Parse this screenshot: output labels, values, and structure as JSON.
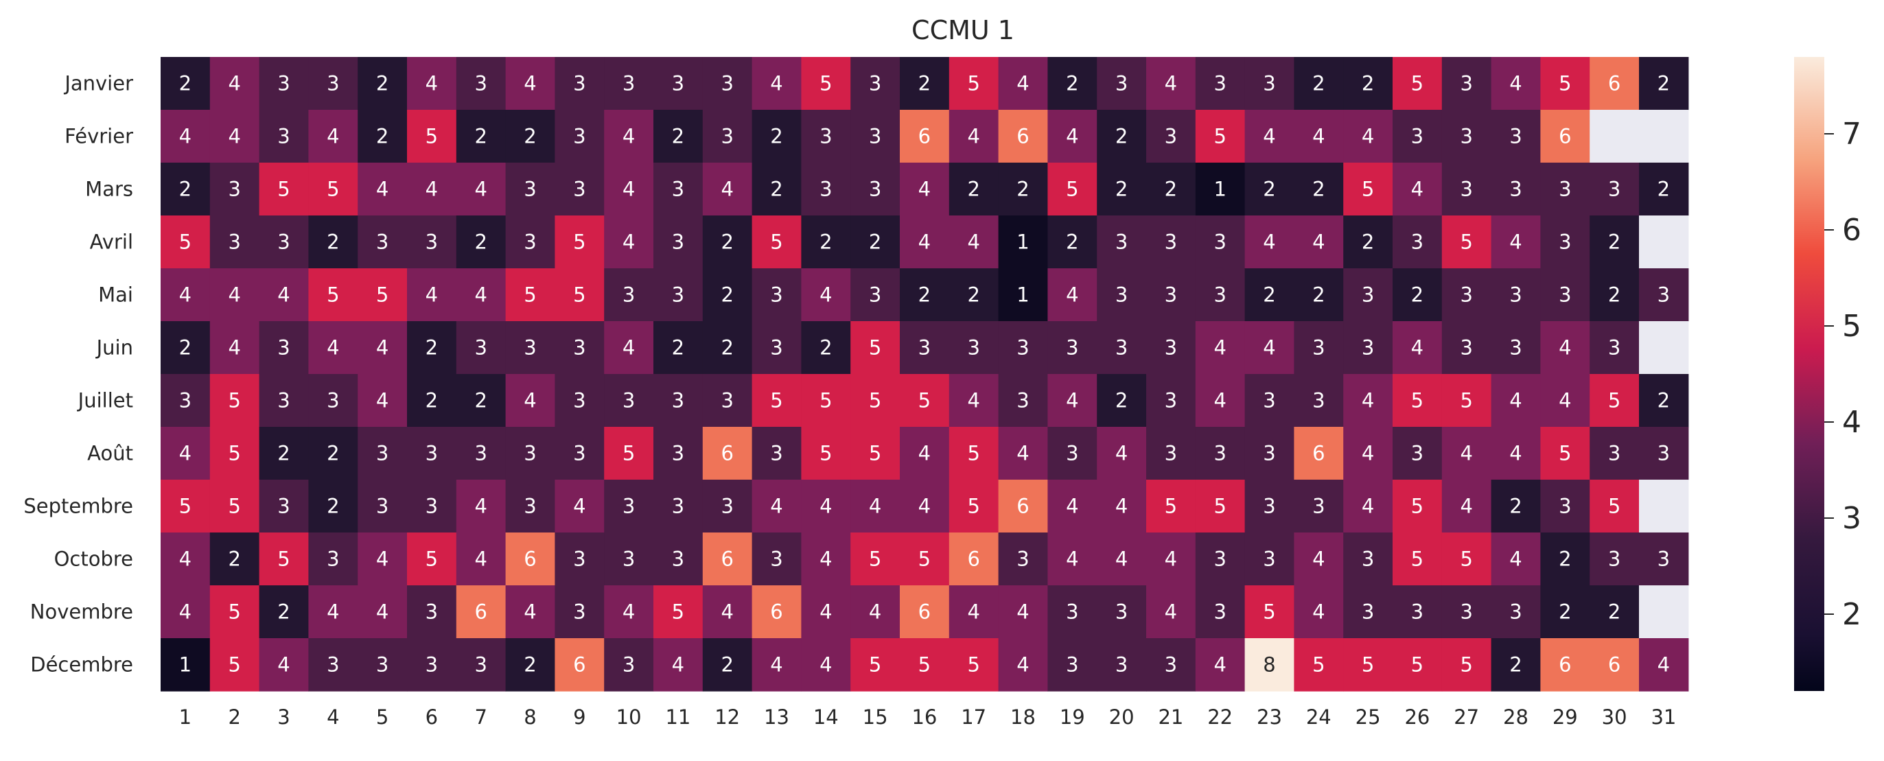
{
  "chart_data": {
    "type": "heatmap",
    "title": "CCMU 1",
    "x": [
      "1",
      "2",
      "3",
      "4",
      "5",
      "6",
      "7",
      "8",
      "9",
      "10",
      "11",
      "12",
      "13",
      "14",
      "15",
      "16",
      "17",
      "18",
      "19",
      "20",
      "21",
      "22",
      "23",
      "24",
      "25",
      "26",
      "27",
      "28",
      "29",
      "30",
      "31"
    ],
    "y": [
      "Janvier",
      "Février",
      "Mars",
      "Avril",
      "Mai",
      "Juin",
      "Juillet",
      "Août",
      "Septembre",
      "Octobre",
      "Novembre",
      "Décembre"
    ],
    "values": [
      [
        2,
        4,
        3,
        3,
        2,
        4,
        3,
        4,
        3,
        3,
        3,
        3,
        4,
        5,
        3,
        2,
        5,
        4,
        2,
        3,
        4,
        3,
        3,
        2,
        2,
        5,
        3,
        4,
        5,
        6,
        2
      ],
      [
        4,
        4,
        3,
        4,
        2,
        5,
        2,
        2,
        3,
        4,
        2,
        3,
        2,
        3,
        3,
        6,
        4,
        6,
        4,
        2,
        3,
        5,
        4,
        4,
        4,
        3,
        3,
        3,
        6,
        null,
        null
      ],
      [
        2,
        3,
        5,
        5,
        4,
        4,
        4,
        3,
        3,
        4,
        3,
        4,
        2,
        3,
        3,
        4,
        2,
        2,
        5,
        2,
        2,
        1,
        2,
        2,
        5,
        4,
        3,
        3,
        3,
        3,
        2
      ],
      [
        5,
        3,
        3,
        2,
        3,
        3,
        2,
        3,
        5,
        4,
        3,
        2,
        5,
        2,
        2,
        4,
        4,
        1,
        2,
        3,
        3,
        3,
        4,
        4,
        2,
        3,
        5,
        4,
        3,
        2,
        null
      ],
      [
        4,
        4,
        4,
        5,
        5,
        4,
        4,
        5,
        5,
        3,
        3,
        2,
        3,
        4,
        3,
        2,
        2,
        1,
        4,
        3,
        3,
        3,
        2,
        2,
        3,
        2,
        3,
        3,
        3,
        2,
        3
      ],
      [
        2,
        4,
        3,
        4,
        4,
        2,
        3,
        3,
        3,
        4,
        2,
        2,
        3,
        2,
        5,
        3,
        3,
        3,
        3,
        3,
        3,
        4,
        4,
        3,
        3,
        4,
        3,
        3,
        4,
        3,
        null
      ],
      [
        3,
        5,
        3,
        3,
        4,
        2,
        2,
        4,
        3,
        3,
        3,
        3,
        5,
        5,
        5,
        5,
        4,
        3,
        4,
        2,
        3,
        4,
        3,
        3,
        4,
        5,
        5,
        4,
        4,
        5,
        2
      ],
      [
        4,
        5,
        2,
        2,
        3,
        3,
        3,
        3,
        3,
        5,
        3,
        6,
        3,
        5,
        5,
        4,
        5,
        4,
        3,
        4,
        3,
        3,
        3,
        6,
        4,
        3,
        4,
        4,
        5,
        3,
        3
      ],
      [
        5,
        5,
        3,
        2,
        3,
        3,
        4,
        3,
        4,
        3,
        3,
        3,
        4,
        4,
        4,
        4,
        5,
        6,
        4,
        4,
        5,
        5,
        3,
        3,
        4,
        5,
        4,
        2,
        3,
        5,
        null
      ],
      [
        4,
        2,
        5,
        3,
        4,
        5,
        4,
        6,
        3,
        3,
        3,
        6,
        3,
        4,
        5,
        5,
        6,
        3,
        4,
        4,
        4,
        3,
        3,
        4,
        3,
        5,
        5,
        4,
        2,
        3,
        3
      ],
      [
        4,
        5,
        2,
        4,
        4,
        3,
        6,
        4,
        3,
        4,
        5,
        4,
        6,
        4,
        4,
        6,
        4,
        4,
        3,
        3,
        4,
        3,
        5,
        4,
        3,
        3,
        3,
        3,
        2,
        2,
        null
      ],
      [
        1,
        5,
        4,
        3,
        3,
        3,
        3,
        2,
        6,
        3,
        4,
        2,
        4,
        4,
        5,
        5,
        5,
        4,
        3,
        3,
        3,
        4,
        8,
        5,
        5,
        5,
        5,
        2,
        6,
        6,
        4
      ]
    ],
    "colorbar": {
      "ticks": [
        2,
        3,
        4,
        5,
        6,
        7
      ],
      "range": [
        1.2,
        7.8
      ],
      "colormap": "rocket"
    },
    "missing_color": "#eaeaf2",
    "grid": false,
    "legend": "colorbar-right"
  }
}
